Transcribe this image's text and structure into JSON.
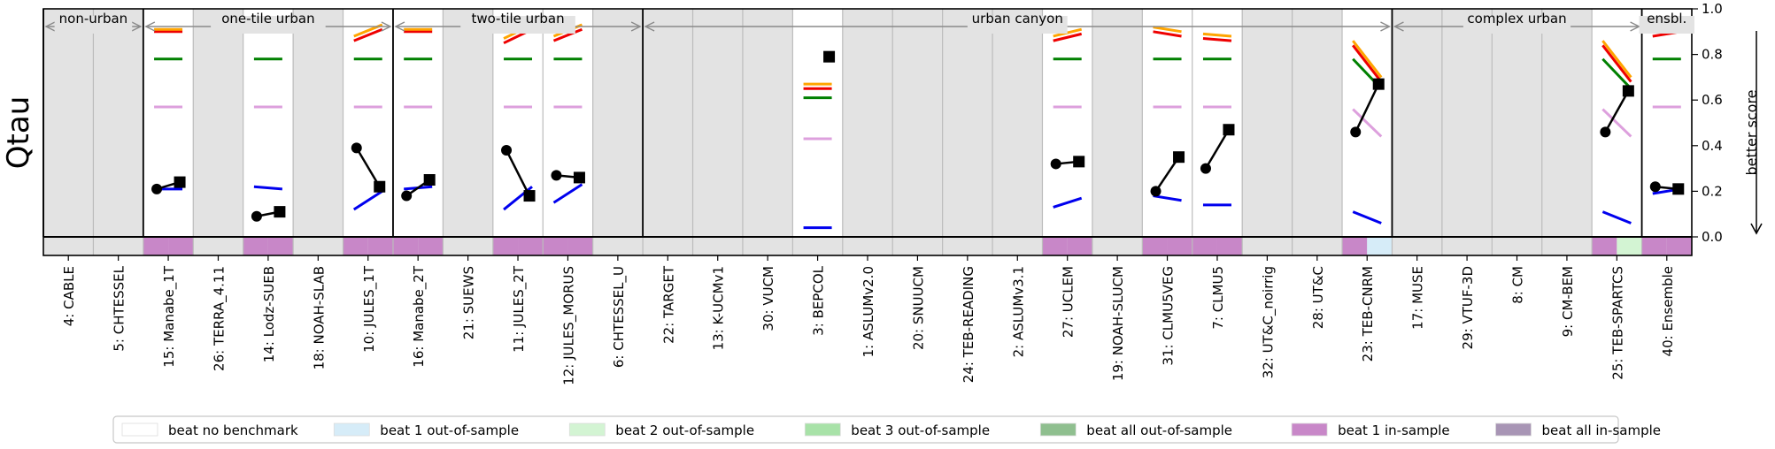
{
  "chart_data": {
    "type": "scatter",
    "ylabel": "Qtau",
    "ylabel_right": "better score",
    "ylim": [
      -0.08,
      1.0
    ],
    "yticks": [
      "0.0",
      "0.2",
      "0.4",
      "0.6",
      "0.8",
      "1.0"
    ],
    "ytick_values": [
      0.0,
      0.2,
      0.4,
      0.6,
      0.8,
      1.0
    ],
    "groups": [
      {
        "label": "non-urban",
        "start": 0,
        "end": 1
      },
      {
        "label": "one-tile urban",
        "start": 2,
        "end": 6
      },
      {
        "label": "two-tile urban",
        "start": 7,
        "end": 11
      },
      {
        "label": "urban canyon",
        "start": 12,
        "end": 26
      },
      {
        "label": "complex urban",
        "start": 27,
        "end": 31
      },
      {
        "label": "ensbl.",
        "start": 32,
        "end": 32
      }
    ],
    "categories": [
      "4: CABLE",
      "5: CHTESSEL",
      "15: Manabe_1T",
      "26: TERRA_4.11",
      "14: Lodz-SUEB",
      "18: NOAH-SLAB",
      "10: JULES_1T",
      "16: Manabe_2T",
      "21: SUEWS",
      "11: JULES_2T",
      "12: JULES_MORUS",
      "6: CHTESSEL_U",
      "22: TARGET",
      "13: K-UCMv1",
      "30: VUCM",
      "3: BEPCOL",
      "1: ASLUMv2.0",
      "20: SNUUCM",
      "24: TEB-READING",
      "2: ASLUMv3.1",
      "27: UCLEM",
      "19: NOAH-SLUCM",
      "31: CLMU5VEG",
      "7: CLMU5",
      "32: UT&C_noirrig",
      "28: UT&C",
      "23: TEB-CNRM",
      "17: MUSE",
      "29: VTUF-3D",
      "8: CM",
      "9: CM-BEM",
      "25: TEB-SPARTCS",
      "40: Ensemble"
    ],
    "benchmark_colors": {
      "1_L": "#0000ee",
      "2_S": "#008000",
      "3_H": "#dda0dd",
      "4_RF_a": "#ee0000",
      "5_RF_b": "#ffa500"
    },
    "benchmarks": {
      "2": {
        "1_L": [
          0.21,
          0.21
        ],
        "2_S": [
          0.78,
          0.78
        ],
        "3_H": [
          0.57,
          0.57
        ],
        "4_RF_a": [
          0.9,
          0.9
        ],
        "5_RF_b": [
          0.91,
          0.91
        ]
      },
      "4": {
        "1_L": [
          0.22,
          0.21
        ],
        "2_S": [
          0.78,
          0.78
        ],
        "3_H": [
          0.57,
          0.57
        ],
        "4_RF_a": [
          0.9,
          0.9
        ],
        "5_RF_b": [
          0.91,
          0.91
        ]
      },
      "6": {
        "1_L": [
          0.12,
          0.2
        ],
        "2_S": [
          0.78,
          0.78
        ],
        "3_H": [
          0.57,
          0.57
        ],
        "4_RF_a": [
          0.86,
          0.91
        ],
        "5_RF_b": [
          0.88,
          0.93
        ]
      },
      "7": {
        "1_L": [
          0.21,
          0.22
        ],
        "2_S": [
          0.78,
          0.78
        ],
        "3_H": [
          0.57,
          0.57
        ],
        "4_RF_a": [
          0.9,
          0.9
        ],
        "5_RF_b": [
          0.91,
          0.91
        ]
      },
      "9": {
        "1_L": [
          0.12,
          0.22
        ],
        "2_S": [
          0.78,
          0.78
        ],
        "3_H": [
          0.57,
          0.57
        ],
        "4_RF_a": [
          0.85,
          0.91
        ],
        "5_RF_b": [
          0.87,
          0.93
        ]
      },
      "10": {
        "1_L": [
          0.15,
          0.23
        ],
        "2_S": [
          0.78,
          0.78
        ],
        "3_H": [
          0.57,
          0.57
        ],
        "4_RF_a": [
          0.86,
          0.91
        ],
        "5_RF_b": [
          0.88,
          0.93
        ]
      },
      "15": {
        "1_L": [
          0.04,
          0.04
        ],
        "2_S": [
          0.61,
          0.61
        ],
        "3_H": [
          0.43,
          0.43
        ],
        "4_RF_a": [
          0.65,
          0.65
        ],
        "5_RF_b": [
          0.67,
          0.67
        ]
      },
      "20": {
        "1_L": [
          0.13,
          0.17
        ],
        "2_S": [
          0.78,
          0.78
        ],
        "3_H": [
          0.57,
          0.57
        ],
        "4_RF_a": [
          0.86,
          0.89
        ],
        "5_RF_b": [
          0.88,
          0.91
        ]
      },
      "22": {
        "1_L": [
          0.18,
          0.16
        ],
        "2_S": [
          0.78,
          0.78
        ],
        "3_H": [
          0.57,
          0.57
        ],
        "4_RF_a": [
          0.9,
          0.88
        ],
        "5_RF_b": [
          0.92,
          0.9
        ]
      },
      "23": {
        "1_L": [
          0.14,
          0.14
        ],
        "2_S": [
          0.78,
          0.78
        ],
        "3_H": [
          0.57,
          0.57
        ],
        "4_RF_a": [
          0.87,
          0.86
        ],
        "5_RF_b": [
          0.89,
          0.88
        ]
      },
      "26": {
        "1_L": [
          0.11,
          0.06
        ],
        "2_S": [
          0.78,
          0.65
        ],
        "3_H": [
          0.56,
          0.44
        ],
        "4_RF_a": [
          0.84,
          0.68
        ],
        "5_RF_b": [
          0.86,
          0.7
        ]
      },
      "31": {
        "1_L": [
          0.11,
          0.06
        ],
        "2_S": [
          0.78,
          0.65
        ],
        "3_H": [
          0.56,
          0.44
        ],
        "4_RF_a": [
          0.84,
          0.68
        ],
        "5_RF_b": [
          0.86,
          0.7
        ]
      },
      "32": {
        "1_L": [
          0.19,
          0.21
        ],
        "2_S": [
          0.78,
          0.78
        ],
        "3_H": [
          0.57,
          0.57
        ],
        "4_RF_a": [
          0.88,
          0.9
        ],
        "5_RF_b": [
          0.9,
          0.92
        ]
      }
    },
    "series": [
      {
        "name": "model",
        "points": [
          {
            "index": 2,
            "circle": 0.21,
            "square": 0.24
          },
          {
            "index": 4,
            "circle": 0.09,
            "square": 0.11
          },
          {
            "index": 6,
            "circle": 0.39,
            "square": 0.22
          },
          {
            "index": 7,
            "circle": 0.18,
            "square": 0.25
          },
          {
            "index": 9,
            "circle": 0.38,
            "square": 0.18
          },
          {
            "index": 10,
            "circle": 0.27,
            "square": 0.26
          },
          {
            "index": 15,
            "circle": null,
            "square": 0.79
          },
          {
            "index": 20,
            "circle": 0.32,
            "square": 0.33
          },
          {
            "index": 22,
            "circle": 0.2,
            "square": 0.35
          },
          {
            "index": 23,
            "circle": 0.3,
            "square": 0.47
          },
          {
            "index": 26,
            "circle": 0.46,
            "square": 0.67
          },
          {
            "index": 31,
            "circle": 0.46,
            "square": 0.64
          },
          {
            "index": 32,
            "circle": 0.22,
            "square": 0.21
          }
        ]
      }
    ],
    "highlighted_columns": [
      2,
      4,
      6,
      7,
      9,
      10,
      15,
      20,
      22,
      23,
      26,
      31,
      32
    ],
    "bottom_strip": [
      {
        "index": 2,
        "segments": [
          "beat 1 in-sample",
          "beat 1 in-sample"
        ]
      },
      {
        "index": 4,
        "segments": [
          "beat 1 in-sample",
          "beat 1 in-sample"
        ]
      },
      {
        "index": 6,
        "segments": [
          "beat 1 in-sample",
          "beat 1 in-sample"
        ]
      },
      {
        "index": 7,
        "segments": [
          "beat 1 in-sample",
          "beat 1 in-sample"
        ]
      },
      {
        "index": 9,
        "segments": [
          "beat 1 in-sample",
          "beat 1 in-sample"
        ]
      },
      {
        "index": 10,
        "segments": [
          "beat 1 in-sample",
          "beat 1 in-sample"
        ]
      },
      {
        "index": 20,
        "segments": [
          "beat 1 in-sample",
          "beat 1 in-sample"
        ]
      },
      {
        "index": 22,
        "segments": [
          "beat 1 in-sample",
          "beat 1 in-sample"
        ]
      },
      {
        "index": 23,
        "segments": [
          "beat 1 in-sample",
          "beat 1 in-sample"
        ]
      },
      {
        "index": 26,
        "segments": [
          "beat 1 in-sample",
          "beat 1 out-of-sample"
        ]
      },
      {
        "index": 31,
        "segments": [
          "beat 1 in-sample",
          "beat 2 out-of-sample"
        ]
      },
      {
        "index": 32,
        "segments": [
          "beat 1 in-sample",
          "beat 1 in-sample"
        ]
      }
    ],
    "legend": [
      {
        "label": "beat no benchmark",
        "color": "#ffffff"
      },
      {
        "label": "beat 1 out-of-sample",
        "color": "#d6ecf8"
      },
      {
        "label": "beat 2 out-of-sample",
        "color": "#d3f4d3"
      },
      {
        "label": "beat 3 out-of-sample",
        "color": "#a8e2a8"
      },
      {
        "label": "beat all out-of-sample",
        "color": "#8fbf8f"
      },
      {
        "label": "beat 1 in-sample",
        "color": "#c887c8"
      },
      {
        "label": "beat all in-sample",
        "color": "#a895b5"
      }
    ],
    "legend_position": "bottom-center",
    "grid": false
  }
}
